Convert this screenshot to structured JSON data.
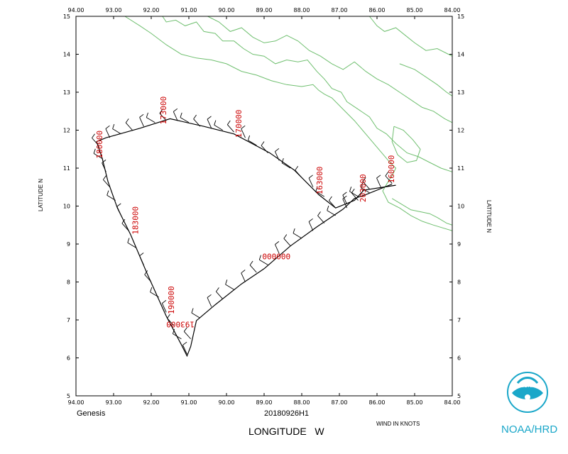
{
  "footer": {
    "storm_label": "Genesis",
    "flight_id": "20180926H1",
    "x_axis_title": "LONGITUDE   W",
    "wind_units": "WIND IN KNOTS",
    "agency": "NOAA/HRD",
    "logo_word": "NOAA"
  },
  "axes": {
    "y_axis_title": "LATITUDE   N",
    "lon_ticks": [
      "94.00",
      "93.00",
      "92.00",
      "91.00",
      "90.00",
      "89.00",
      "88.00",
      "87.00",
      "86.00",
      "85.00",
      "84.00"
    ],
    "lat_ticks": [
      "5",
      "6",
      "7",
      "8",
      "9",
      "10",
      "11",
      "12",
      "13",
      "14",
      "15"
    ],
    "lon_range": [
      -94,
      -84
    ],
    "lat_range": [
      5,
      15
    ]
  },
  "colors": {
    "coast": "#6fbf6f",
    "track": "#000000",
    "annotation": "#cc0000",
    "agency": "#1aa7c9"
  },
  "track": [
    [
      -85.6,
      10.58
    ],
    [
      -86.3,
      10.3
    ],
    [
      -86.6,
      10.2
    ],
    [
      -86.9,
      9.92
    ],
    [
      -87.6,
      9.45
    ],
    [
      -88.3,
      8.95
    ],
    [
      -89.0,
      8.35
    ],
    [
      -89.6,
      7.95
    ],
    [
      -90.3,
      7.4
    ],
    [
      -90.8,
      6.98
    ],
    [
      -90.95,
      6.3
    ],
    [
      -91.05,
      6.05
    ],
    [
      -91.2,
      6.35
    ],
    [
      -91.6,
      7.1
    ],
    [
      -92.1,
      8.2
    ],
    [
      -92.55,
      9.25
    ],
    [
      -92.9,
      9.95
    ],
    [
      -93.15,
      10.65
    ],
    [
      -93.3,
      11.25
    ],
    [
      -93.45,
      11.7
    ],
    [
      -93.2,
      11.8
    ],
    [
      -92.3,
      12.05
    ],
    [
      -91.5,
      12.3
    ],
    [
      -90.6,
      12.1
    ],
    [
      -89.8,
      11.9
    ],
    [
      -88.85,
      11.4
    ],
    [
      -88.2,
      10.95
    ],
    [
      -87.55,
      10.3
    ],
    [
      -87.1,
      9.95
    ],
    [
      -86.6,
      10.15
    ],
    [
      -86.35,
      10.42
    ],
    [
      -85.5,
      10.55
    ]
  ],
  "barbs": [
    [
      -85.6,
      10.6
    ],
    [
      -85.9,
      10.5
    ],
    [
      -86.2,
      10.35
    ],
    [
      -86.5,
      10.15
    ],
    [
      -86.8,
      9.95
    ],
    [
      -87.1,
      9.75
    ],
    [
      -87.4,
      9.55
    ],
    [
      -87.7,
      9.35
    ],
    [
      -88.0,
      9.15
    ],
    [
      -88.3,
      8.95
    ],
    [
      -88.6,
      8.75
    ],
    [
      -88.9,
      8.45
    ],
    [
      -89.2,
      8.25
    ],
    [
      -89.5,
      8.0
    ],
    [
      -89.8,
      7.8
    ],
    [
      -90.1,
      7.55
    ],
    [
      -90.4,
      7.35
    ],
    [
      -90.7,
      7.05
    ],
    [
      -90.95,
      6.5
    ],
    [
      -91.05,
      6.1
    ],
    [
      -91.2,
      6.5
    ],
    [
      -91.4,
      6.85
    ],
    [
      -91.6,
      7.2
    ],
    [
      -91.8,
      7.6
    ],
    [
      -92.0,
      8.0
    ],
    [
      -92.2,
      8.45
    ],
    [
      -92.4,
      8.9
    ],
    [
      -92.6,
      9.35
    ],
    [
      -92.8,
      9.75
    ],
    [
      -92.95,
      10.15
    ],
    [
      -93.1,
      10.5
    ],
    [
      -93.2,
      10.9
    ],
    [
      -93.3,
      11.25
    ],
    [
      -93.4,
      11.6
    ],
    [
      -93.1,
      11.8
    ],
    [
      -92.8,
      11.9
    ],
    [
      -92.5,
      12.0
    ],
    [
      -92.2,
      12.1
    ],
    [
      -91.9,
      12.2
    ],
    [
      -91.6,
      12.25
    ],
    [
      -91.3,
      12.25
    ],
    [
      -91.0,
      12.2
    ],
    [
      -90.7,
      12.1
    ],
    [
      -90.4,
      12.05
    ],
    [
      -90.1,
      12.0
    ],
    [
      -89.8,
      11.95
    ],
    [
      -89.5,
      11.8
    ],
    [
      -89.2,
      11.6
    ],
    [
      -88.9,
      11.4
    ],
    [
      -88.6,
      11.2
    ],
    [
      -88.3,
      11.0
    ],
    [
      -88.0,
      10.75
    ],
    [
      -87.7,
      10.5
    ],
    [
      -87.4,
      10.25
    ],
    [
      -87.1,
      9.95
    ],
    [
      -86.8,
      10.05
    ],
    [
      -86.5,
      10.25
    ],
    [
      -86.2,
      10.45
    ]
  ],
  "annotations": [
    {
      "text": "173000",
      "lon": -91.6,
      "lat": 12.15,
      "angle": -90
    },
    {
      "text": "170000",
      "lon": -89.6,
      "lat": 11.8,
      "angle": -90
    },
    {
      "text": "163000",
      "lon": -87.45,
      "lat": 10.3,
      "angle": -90
    },
    {
      "text": "203000",
      "lon": -86.3,
      "lat": 10.1,
      "angle": -90
    },
    {
      "text": "160000",
      "lon": -85.55,
      "lat": 10.6,
      "angle": -90
    },
    {
      "text": "180000",
      "lon": -93.3,
      "lat": 11.25,
      "angle": -90
    },
    {
      "text": "183000",
      "lon": -92.35,
      "lat": 9.25,
      "angle": -90
    },
    {
      "text": "190000",
      "lon": -91.4,
      "lat": 7.15,
      "angle": -90
    },
    {
      "text": "000000",
      "lon": -89.05,
      "lat": 8.6,
      "angle": 0
    },
    {
      "text": "193000",
      "lon": -90.85,
      "lat": 6.95,
      "angle": 180
    }
  ],
  "coastlines": [
    [
      [
        -92.7,
        15.0
      ],
      [
        -92.3,
        14.75
      ],
      [
        -92.0,
        14.55
      ],
      [
        -91.6,
        14.25
      ],
      [
        -91.2,
        14.0
      ],
      [
        -90.8,
        13.9
      ],
      [
        -90.4,
        13.85
      ],
      [
        -90.0,
        13.75
      ],
      [
        -89.6,
        13.55
      ],
      [
        -89.2,
        13.45
      ],
      [
        -88.8,
        13.3
      ],
      [
        -88.4,
        13.2
      ],
      [
        -88.0,
        13.15
      ],
      [
        -87.7,
        13.2
      ],
      [
        -87.55,
        13.05
      ],
      [
        -87.4,
        12.95
      ],
      [
        -87.2,
        12.85
      ],
      [
        -86.9,
        12.55
      ],
      [
        -86.6,
        12.25
      ],
      [
        -86.3,
        11.9
      ],
      [
        -86.0,
        11.55
      ],
      [
        -85.7,
        11.2
      ],
      [
        -85.5,
        11.0
      ],
      [
        -85.6,
        10.8
      ],
      [
        -85.7,
        10.65
      ],
      [
        -85.85,
        10.4
      ],
      [
        -85.7,
        10.1
      ],
      [
        -85.4,
        9.95
      ],
      [
        -85.1,
        9.75
      ],
      [
        -84.8,
        9.6
      ],
      [
        -84.5,
        9.5
      ],
      [
        -84.0,
        9.35
      ]
    ],
    [
      [
        -91.7,
        15.0
      ],
      [
        -91.6,
        14.85
      ],
      [
        -91.35,
        14.9
      ],
      [
        -91.1,
        14.75
      ],
      [
        -90.8,
        14.85
      ],
      [
        -90.6,
        14.6
      ],
      [
        -90.3,
        14.55
      ],
      [
        -90.1,
        14.35
      ],
      [
        -89.8,
        14.35
      ],
      [
        -89.55,
        14.15
      ],
      [
        -89.3,
        14.0
      ],
      [
        -89.0,
        13.95
      ],
      [
        -88.7,
        13.75
      ],
      [
        -88.4,
        13.85
      ],
      [
        -88.1,
        13.8
      ],
      [
        -87.85,
        13.85
      ],
      [
        -87.6,
        13.55
      ],
      [
        -87.4,
        13.35
      ],
      [
        -87.2,
        13.1
      ],
      [
        -86.95,
        13.0
      ],
      [
        -86.8,
        12.75
      ],
      [
        -86.5,
        12.55
      ],
      [
        -86.2,
        12.35
      ],
      [
        -86.0,
        12.05
      ],
      [
        -85.75,
        11.9
      ],
      [
        -85.5,
        11.65
      ],
      [
        -85.2,
        11.4
      ],
      [
        -84.9,
        11.3
      ],
      [
        -84.6,
        11.15
      ],
      [
        -84.3,
        11.0
      ],
      [
        -84.0,
        10.9
      ]
    ],
    [
      [
        -90.5,
        15.0
      ],
      [
        -90.2,
        14.85
      ],
      [
        -89.9,
        14.6
      ],
      [
        -89.6,
        14.7
      ],
      [
        -89.3,
        14.45
      ],
      [
        -89.0,
        14.3
      ],
      [
        -88.7,
        14.35
      ],
      [
        -88.4,
        14.5
      ],
      [
        -88.1,
        14.35
      ],
      [
        -87.8,
        14.1
      ],
      [
        -87.5,
        13.95
      ],
      [
        -87.2,
        13.75
      ],
      [
        -86.9,
        13.6
      ],
      [
        -86.6,
        13.8
      ],
      [
        -86.3,
        13.55
      ],
      [
        -86.0,
        13.35
      ],
      [
        -85.7,
        13.2
      ],
      [
        -85.4,
        13.0
      ],
      [
        -85.1,
        12.8
      ],
      [
        -84.8,
        12.6
      ],
      [
        -84.5,
        12.5
      ],
      [
        -84.2,
        12.3
      ],
      [
        -84.0,
        12.2
      ]
    ],
    [
      [
        -86.2,
        15.0
      ],
      [
        -86.0,
        14.75
      ],
      [
        -85.8,
        14.6
      ],
      [
        -85.5,
        14.7
      ],
      [
        -85.25,
        14.5
      ],
      [
        -85.0,
        14.3
      ],
      [
        -84.7,
        14.1
      ],
      [
        -84.4,
        14.15
      ],
      [
        -84.1,
        14.0
      ],
      [
        -84.0,
        13.95
      ]
    ],
    [
      [
        -85.55,
        12.1
      ],
      [
        -85.3,
        12.0
      ],
      [
        -85.05,
        11.75
      ],
      [
        -84.85,
        11.5
      ],
      [
        -84.95,
        11.2
      ],
      [
        -85.2,
        11.15
      ],
      [
        -85.45,
        11.35
      ],
      [
        -85.6,
        11.7
      ],
      [
        -85.55,
        12.1
      ]
    ],
    [
      [
        -85.6,
        10.2
      ],
      [
        -85.35,
        10.05
      ],
      [
        -85.1,
        9.9
      ],
      [
        -84.85,
        9.85
      ],
      [
        -84.6,
        9.8
      ],
      [
        -84.4,
        9.7
      ],
      [
        -84.15,
        9.55
      ],
      [
        -84.0,
        9.5
      ]
    ],
    [
      [
        -85.4,
        13.75
      ],
      [
        -85.0,
        13.6
      ],
      [
        -84.7,
        13.4
      ],
      [
        -84.4,
        13.2
      ],
      [
        -84.15,
        13.0
      ],
      [
        -84.0,
        12.9
      ]
    ]
  ]
}
